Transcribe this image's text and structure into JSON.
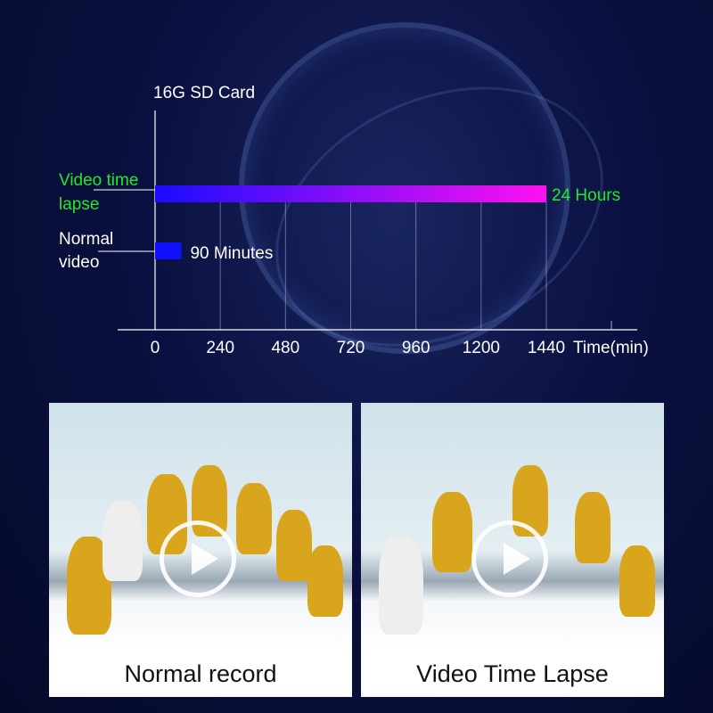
{
  "chart_data": {
    "type": "bar",
    "orientation": "horizontal",
    "title": "16G SD Card",
    "xlabel": "Time(min)",
    "categories": [
      "Video time lapse",
      "Normal video"
    ],
    "values": [
      1440,
      90
    ],
    "data_labels": [
      "24 Hours",
      "90 Minutes"
    ],
    "xticks": [
      0,
      240,
      480,
      720,
      960,
      1200,
      1440
    ],
    "xlim": [
      0,
      1440
    ],
    "grid": "vertical",
    "colors": {
      "time_lapse_gradient": [
        "#1a0cff",
        "#ff10f0"
      ],
      "normal": "#1010ff",
      "time_lapse_label": "#22e82a",
      "text": "#ffffff"
    }
  },
  "panels": [
    {
      "caption": "Normal record",
      "icon": "play-icon"
    },
    {
      "caption": "Video Time Lapse",
      "icon": "play-icon"
    }
  ]
}
